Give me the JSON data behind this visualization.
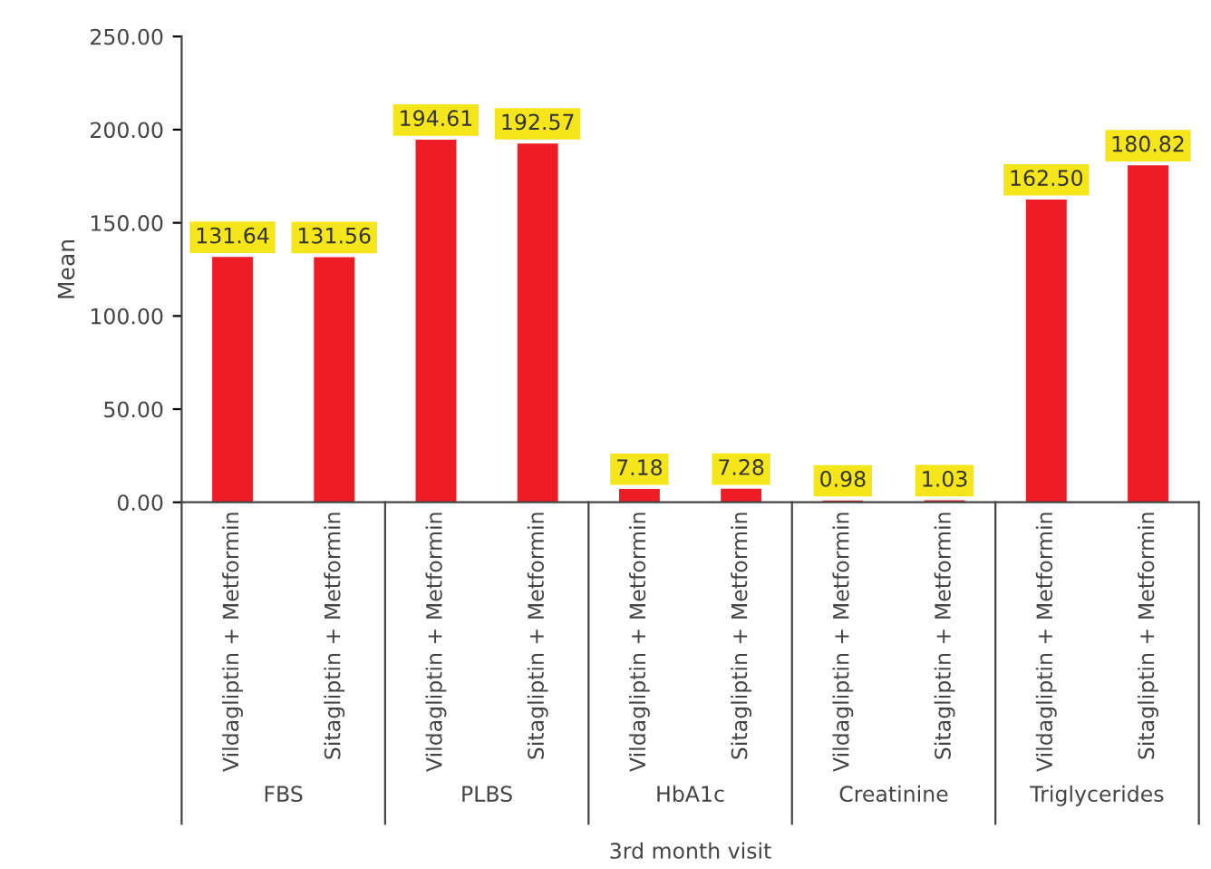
{
  "chart_data": {
    "type": "bar",
    "xlabel": "3rd month visit",
    "ylabel": "Mean",
    "categories": [
      "Vildagliptin + Metformin",
      "Sitagliptin + Metformin",
      "Vildagliptin + Metformin",
      "Sitagliptin + Metformin",
      "Vildagliptin + Metformin",
      "Sitagliptin + Metformin",
      "Vildagliptin + Metformin",
      "Sitagliptin + Metformin",
      "Vildagliptin + Metformin",
      "Sitagliptin + Metformin"
    ],
    "values": [
      131.64,
      131.56,
      194.61,
      192.57,
      7.18,
      7.28,
      0.98,
      1.03,
      162.5,
      180.82
    ],
    "value_labels": [
      "131.64",
      "131.56",
      "194.61",
      "192.57",
      "7.18",
      "7.28",
      "0.98",
      "1.03",
      "162.50",
      "180.82"
    ],
    "color": "#ee1c25",
    "annotations": [
      "FBS",
      "PLBS",
      "HbA1c",
      "Creatinine",
      "Triglycerides"
    ],
    "ylim": [
      0,
      250
    ],
    "yticks": [
      {
        "value": 0,
        "label": "0.00"
      },
      {
        "value": 50,
        "label": "50.00"
      },
      {
        "value": 100,
        "label": "100.00"
      },
      {
        "value": 150,
        "label": "150.00"
      },
      {
        "value": 200,
        "label": "200.00"
      },
      {
        "value": 250,
        "label": "250.00"
      }
    ],
    "grid": false,
    "legend": false
  }
}
